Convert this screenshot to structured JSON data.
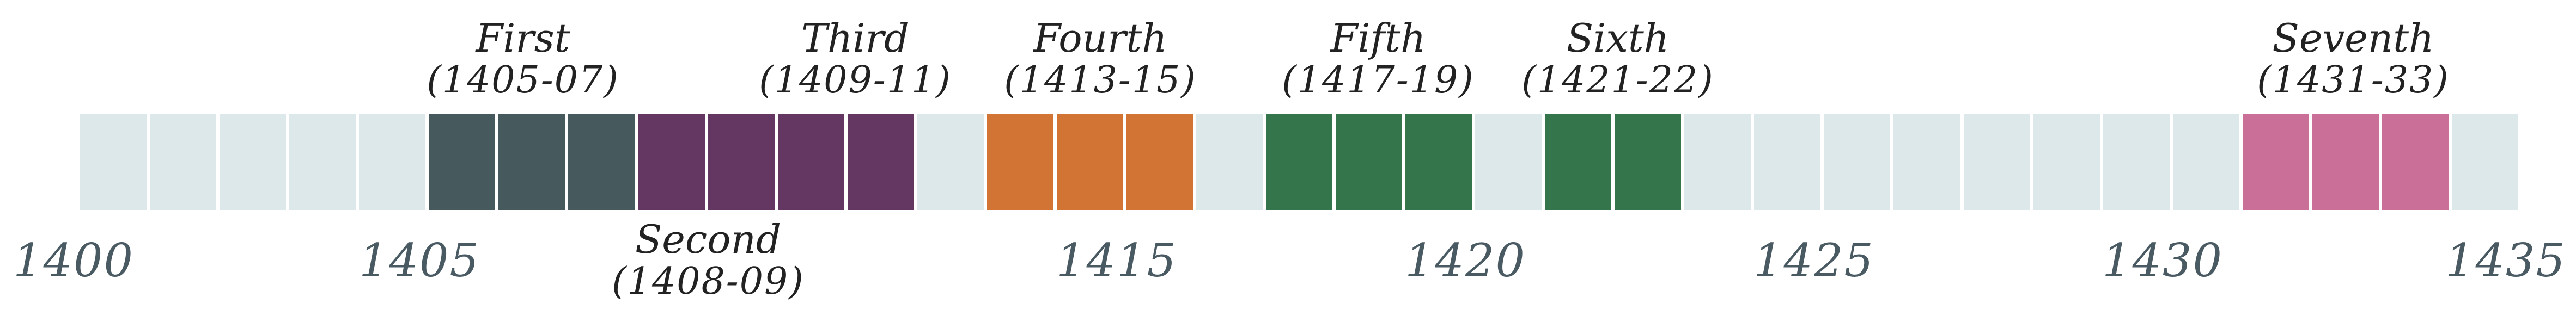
{
  "colors": {
    "empty": "#dde8ea",
    "divider": "#ffffff",
    "year_text": "#4a5a63",
    "label_text": "#222222"
  },
  "timeline": {
    "start_year": 1400,
    "end_year": 1435,
    "years": [
      "1400",
      "1405",
      "1415",
      "1420",
      "1425",
      "1430",
      "1435"
    ],
    "voyages": [
      {
        "name": "First",
        "range": "(1405-07)",
        "from": 1405,
        "to": 1408,
        "color": "#465a5e",
        "label_position": "above"
      },
      {
        "name": "Second",
        "range": "(1408-09)",
        "from": 1408,
        "to": 1410,
        "color": "#633762",
        "label_position": "below"
      },
      {
        "name": "Third",
        "range": "(1409-11)",
        "from": 1410,
        "to": 1412,
        "color": "#633762",
        "label_position": "above"
      },
      {
        "name": "Fourth",
        "range": "(1413-15)",
        "from": 1413,
        "to": 1416,
        "color": "#d27433",
        "label_position": "above"
      },
      {
        "name": "Fifth",
        "range": "(1417-19)",
        "from": 1417,
        "to": 1420,
        "color": "#35754c",
        "label_position": "above"
      },
      {
        "name": "Sixth",
        "range": "(1421-22)",
        "from": 1421,
        "to": 1423,
        "color": "#35754c",
        "label_position": "above"
      },
      {
        "name": "Seventh",
        "range": "(1431-33)",
        "from": 1431,
        "to": 1434,
        "color": "#c96f98",
        "label_position": "above"
      }
    ]
  }
}
